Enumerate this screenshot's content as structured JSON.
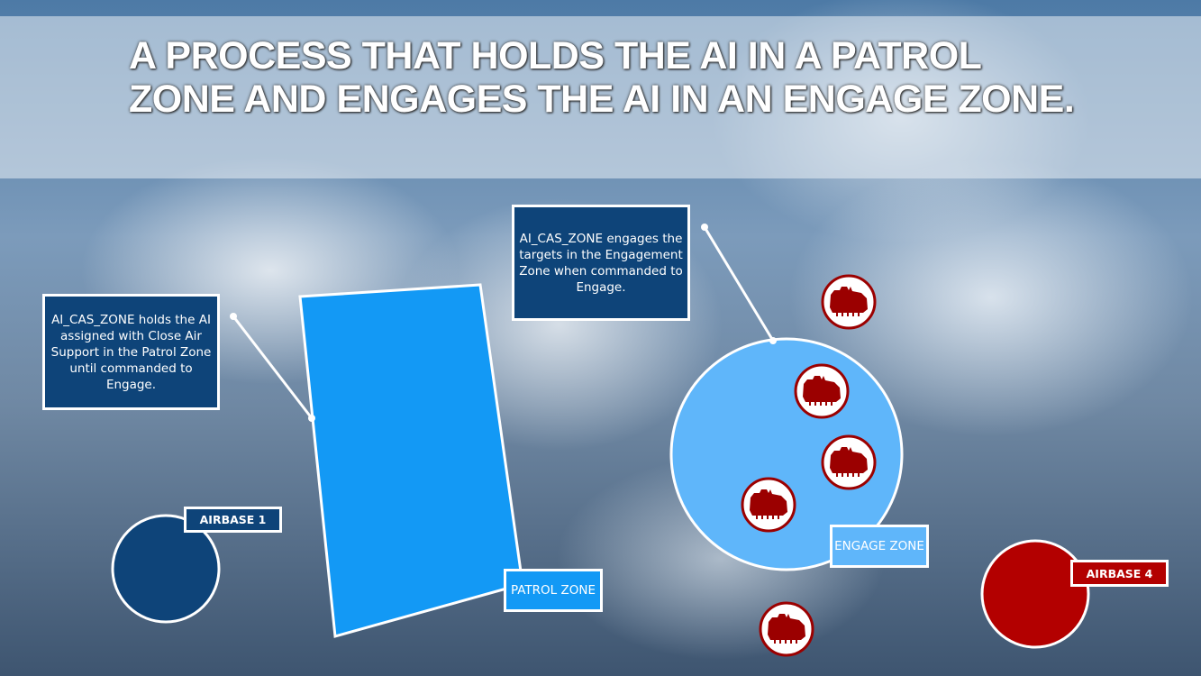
{
  "title": "A PROCESS THAT HOLDS THE AI IN A PATROL ZONE AND ENGAGES THE AI IN AN ENGAGE ZONE.",
  "callouts": {
    "patrol": "AI_CAS_ZONE holds the AI assigned with Close Air Support in the Patrol Zone until commanded to Engage.",
    "engage": "AI_CAS_ZONE engages the targets in the Engagement Zone when commanded to Engage."
  },
  "labels": {
    "airbase1": "AIRBASE 1",
    "patrol_zone": "PATROL ZONE",
    "engage_zone": "ENGAGE ZONE",
    "airbase4": "AIRBASE 4"
  },
  "colors": {
    "patrol_zone": "#1399f5",
    "engage_zone": "#5fb6fa",
    "airbase1": "#0e4479",
    "airbase4": "#b30000",
    "target": "#9b0000"
  },
  "icons": [
    "tank-icon",
    "tank-icon",
    "tank-icon",
    "tank-icon",
    "tank-icon"
  ]
}
